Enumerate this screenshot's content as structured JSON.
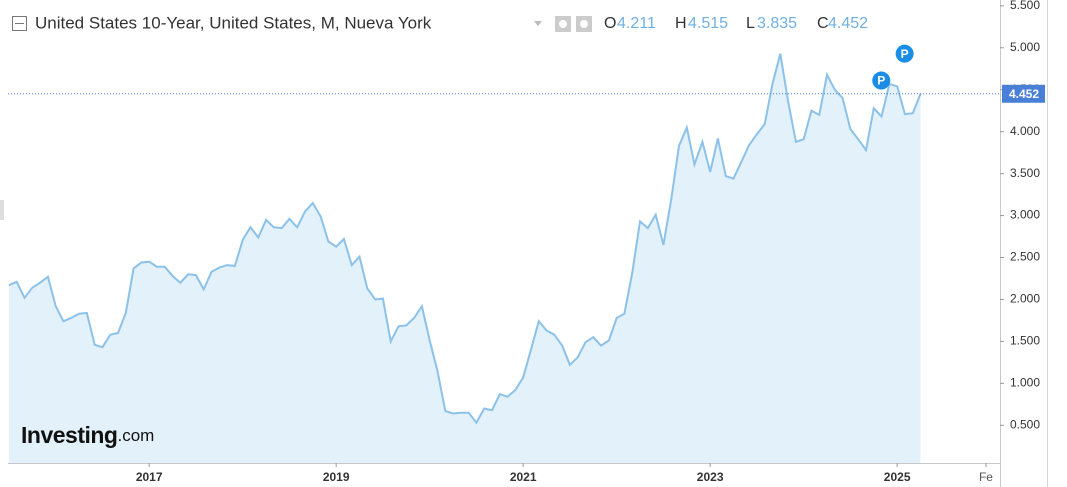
{
  "chart_data": {
    "type": "area",
    "title": "United States 10-Year, United States, M, Nueva York",
    "ohlc": [
      {
        "label": "O",
        "value": 4.211
      },
      {
        "label": "H",
        "value": 4.515
      },
      {
        "label": "L",
        "value": 3.835
      },
      {
        "label": "C",
        "value": 4.452
      }
    ],
    "price_tag": 4.452,
    "logo": {
      "brand": "Investing",
      "suffix": ".com"
    },
    "color": "#8cc1e9",
    "fill_color": "#e2f1fa",
    "tag_color": "#4a7fd8",
    "grid": false,
    "xlim": [
      2015.49,
      2026.1
    ],
    "xticks": [
      2017,
      2019,
      2021,
      2023,
      2025,
      {
        "value": 2025.95,
        "label": "Fe"
      }
    ],
    "ylim": [
      0.05,
      5.57
    ],
    "yticks": [
      {
        "value": 0.5,
        "label": "0.500"
      },
      {
        "value": 1,
        "label": "1.000"
      },
      {
        "value": 1.5,
        "label": "1.500"
      },
      {
        "value": 2,
        "label": "2.000"
      },
      {
        "value": 2.5,
        "label": "2.500"
      },
      {
        "value": 3,
        "label": "3.000"
      },
      {
        "value": 3.5,
        "label": "3.500"
      },
      {
        "value": 4,
        "label": "4.000"
      },
      {
        "value": 4.5,
        "label": "4.500"
      },
      {
        "value": 5,
        "label": "5.000"
      },
      {
        "value": 5.5,
        "label": "5.500"
      }
    ],
    "annotations": [
      {
        "text": "P",
        "x": 2024.83,
        "y": 4.61
      },
      {
        "text": "P",
        "x": 2025.08,
        "y": 4.93
      }
    ],
    "x": [
      2015.5,
      2015.583,
      2015.667,
      2015.75,
      2015.833,
      2015.917,
      2016,
      2016.083,
      2016.167,
      2016.25,
      2016.333,
      2016.417,
      2016.5,
      2016.583,
      2016.667,
      2016.75,
      2016.833,
      2016.917,
      2017,
      2017.083,
      2017.167,
      2017.25,
      2017.333,
      2017.417,
      2017.5,
      2017.583,
      2017.667,
      2017.75,
      2017.833,
      2017.917,
      2018,
      2018.083,
      2018.167,
      2018.25,
      2018.333,
      2018.417,
      2018.5,
      2018.583,
      2018.667,
      2018.75,
      2018.833,
      2018.917,
      2019,
      2019.083,
      2019.167,
      2019.25,
      2019.333,
      2019.417,
      2019.5,
      2019.583,
      2019.667,
      2019.75,
      2019.833,
      2019.917,
      2020,
      2020.083,
      2020.167,
      2020.25,
      2020.333,
      2020.417,
      2020.5,
      2020.583,
      2020.667,
      2020.75,
      2020.833,
      2020.917,
      2021,
      2021.083,
      2021.167,
      2021.25,
      2021.333,
      2021.417,
      2021.5,
      2021.583,
      2021.667,
      2021.75,
      2021.833,
      2021.917,
      2022,
      2022.083,
      2022.167,
      2022.25,
      2022.333,
      2022.417,
      2022.5,
      2022.583,
      2022.667,
      2022.75,
      2022.833,
      2022.917,
      2023,
      2023.083,
      2023.167,
      2023.25,
      2023.333,
      2023.417,
      2023.5,
      2023.583,
      2023.667,
      2023.75,
      2023.833,
      2023.917,
      2024,
      2024.083,
      2024.167,
      2024.25,
      2024.333,
      2024.417,
      2024.5,
      2024.583,
      2024.667,
      2024.75,
      2024.833,
      2024.917,
      2025,
      2025.083,
      2025.167,
      2025.25
    ],
    "values": [
      2.17,
      2.21,
      2.02,
      2.14,
      2.2,
      2.27,
      1.92,
      1.74,
      1.78,
      1.83,
      1.84,
      1.46,
      1.43,
      1.58,
      1.6,
      1.84,
      2.37,
      2.44,
      2.45,
      2.39,
      2.39,
      2.28,
      2.2,
      2.3,
      2.29,
      2.12,
      2.33,
      2.38,
      2.41,
      2.4,
      2.71,
      2.86,
      2.74,
      2.95,
      2.86,
      2.85,
      2.96,
      2.86,
      3.05,
      3.15,
      2.99,
      2.69,
      2.63,
      2.72,
      2.41,
      2.51,
      2.13,
      2.0,
      2.01,
      1.5,
      1.68,
      1.69,
      1.78,
      1.92,
      1.51,
      1.15,
      0.67,
      0.64,
      0.65,
      0.65,
      0.53,
      0.7,
      0.68,
      0.87,
      0.84,
      0.92,
      1.07,
      1.4,
      1.74,
      1.63,
      1.58,
      1.45,
      1.22,
      1.31,
      1.49,
      1.55,
      1.45,
      1.51,
      1.78,
      1.83,
      2.32,
      2.93,
      2.85,
      3.01,
      2.65,
      3.19,
      3.83,
      4.05,
      3.61,
      3.88,
      3.52,
      3.92,
      3.47,
      3.44,
      3.64,
      3.84,
      3.97,
      4.09,
      4.57,
      4.93,
      4.37,
      3.88,
      3.91,
      4.25,
      4.2,
      4.68,
      4.5,
      4.4,
      4.03,
      3.91,
      3.78,
      4.28,
      4.18,
      4.57,
      4.54,
      4.21,
      4.22,
      4.452
    ]
  }
}
